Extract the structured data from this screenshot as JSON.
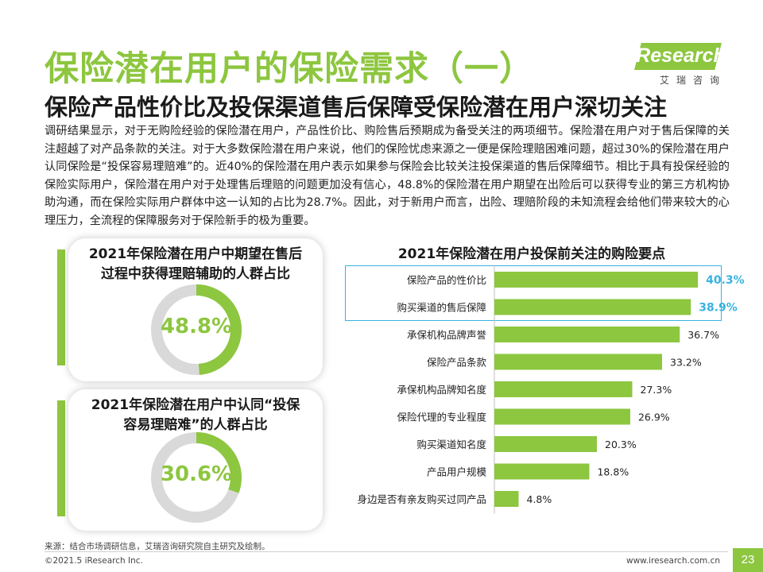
{
  "header": {
    "title": "保险潜在用户的保险需求（一）",
    "subtitle": "保险产品性价比及投保渠道售后保障受保险潜在用户深切关注",
    "logo_text": "iResearch",
    "logo_cn": "艾瑞咨询"
  },
  "body": {
    "paragraphs": [
      "调研结果显示，对于无购险经验的保险潜在用户，产品性价比、购险售后预期成为备受关注的两项细节。保险潜在用户对于售后保障的关注超越了对产品条款的关注。对于大多数保险潜在用户来说，他们的保险忧虑来源之一便是保险理赔困难问题，超过30%的保险潜在用户认同保险是“投保容易理赔难”的。近40%的保险潜在用户表示如果参与保险会比较关注投保渠道的售后保障细节。相比于具有投保经验的保险实际用户，保险潜在用户对于处理售后理赔的问题更加没有信心，48.8%的保险潜在用户期望在出险后可以获得专业的第三方机构协助沟通，而在保险实际用户群体中这一认知的占比为28.7%。因此，对于新用户而言，出险、理赔阶段的未知流程会给他们带来较大的心理压力，全流程的保障服务对于保险新手的极为重要。"
    ]
  },
  "panels": [
    {
      "title_line1": "2021年保险潜在用户中期望在售后",
      "title_line2": "过程中获得理赔辅助的人群占比",
      "value": 0.488,
      "value_label": "48.8%"
    },
    {
      "title_line1": "2021年保险潜在用户中认同“投保",
      "title_line2": "容易理赔难”的人群占比",
      "value": 0.306,
      "value_label": "30.6%"
    }
  ],
  "chart_data": {
    "type": "bar",
    "orientation": "horizontal",
    "title": "2021年保险潜在用户投保前关注的购险要点",
    "categories": [
      "保险产品的性价比",
      "购买渠道的售后保障",
      "承保机构品牌声誉",
      "保险产品条款",
      "承保机构品牌知名度",
      "保险代理的专业程度",
      "购买渠道知名度",
      "产品用户规模",
      "身边是否有亲友购买过同产品"
    ],
    "values": [
      40.3,
      38.9,
      36.7,
      33.2,
      27.3,
      26.9,
      20.3,
      18.8,
      4.8
    ],
    "labels": [
      "40.3%",
      "38.9%",
      "36.7%",
      "33.2%",
      "27.3%",
      "26.9%",
      "20.3%",
      "18.8%",
      "4.8%"
    ],
    "highlighted": [
      0,
      1
    ],
    "xlim": [
      0,
      45
    ],
    "bar_color": "#8dc63f",
    "highlight_label_color": "#38b3e0"
  },
  "footer": {
    "source": "来源：结合市场调研信息，艾瑞咨询研究院自主研究及绘制。",
    "copyright": "©2021.5 iResearch Inc.",
    "url": "www.iresearch.com.cn",
    "page": "23"
  },
  "colors": {
    "accent": "#8dc63f",
    "highlight": "#38b3e0",
    "track": "#d9d9d9"
  }
}
